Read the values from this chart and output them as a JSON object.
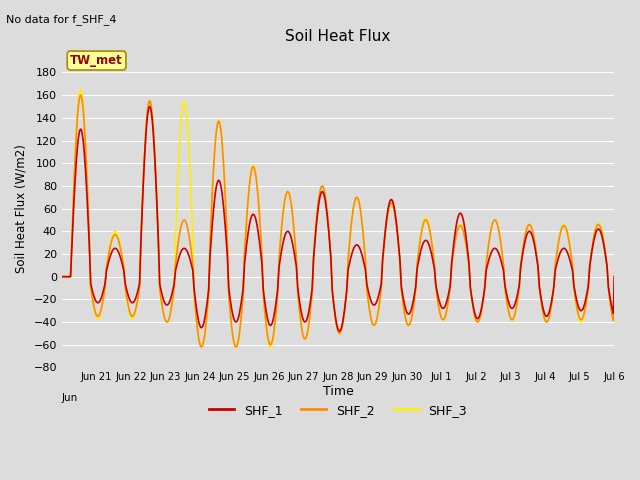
{
  "title": "Soil Heat Flux",
  "subtitle": "No data for f_SHF_4",
  "ylabel": "Soil Heat Flux (W/m2)",
  "xlabel": "Time",
  "ylim": [
    -80,
    200
  ],
  "yticks": [
    -80,
    -60,
    -40,
    -20,
    0,
    20,
    40,
    60,
    80,
    100,
    120,
    140,
    160,
    180
  ],
  "background_color": "#dcdcdc",
  "plot_bg_color": "#dcdcdc",
  "line_colors": {
    "SHF_1": "#cc0000",
    "SHF_2": "#ff8c00",
    "SHF_3": "#ffee00"
  },
  "legend_label": "TW_met",
  "legend_box_color": "#ffff99",
  "legend_box_edge": "#aa8800",
  "grid_color": "#ffffff",
  "figsize": [
    6.4,
    4.8
  ],
  "dpi": 100,
  "day_peaks_shf1": [
    130,
    25,
    150,
    25,
    85,
    55,
    40,
    75,
    28,
    68,
    32,
    56,
    25,
    40,
    25,
    42
  ],
  "day_peaks_shf2": [
    160,
    37,
    155,
    50,
    137,
    97,
    75,
    80,
    70,
    65,
    50,
    45,
    50,
    46,
    45,
    46
  ],
  "day_peaks_shf3": [
    165,
    40,
    155,
    155,
    138,
    98,
    75,
    80,
    70,
    65,
    52,
    46,
    50,
    46,
    46,
    47
  ],
  "day_troughs_shf1": [
    -23,
    -23,
    -25,
    -45,
    -40,
    -43,
    -40,
    -48,
    -25,
    -33,
    -28,
    -37,
    -28,
    -35,
    -30,
    -35
  ],
  "day_troughs_shf2": [
    -35,
    -35,
    -40,
    -62,
    -62,
    -60,
    -55,
    -50,
    -43,
    -43,
    -38,
    -40,
    -38,
    -40,
    -38,
    -42
  ],
  "day_troughs_shf3": [
    -37,
    -37,
    -40,
    -62,
    -62,
    -62,
    -55,
    -50,
    -43,
    -43,
    -38,
    -40,
    -38,
    -40,
    -40,
    -42
  ]
}
